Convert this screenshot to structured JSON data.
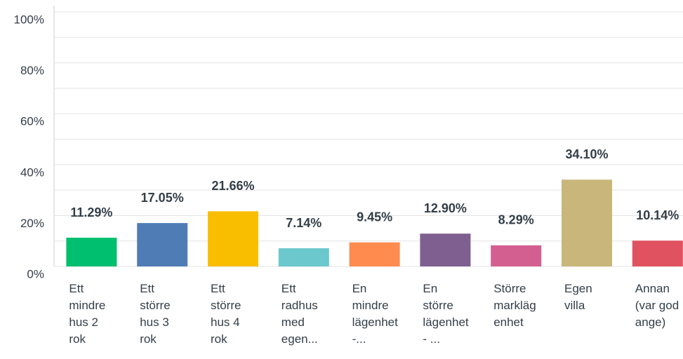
{
  "chart_data": {
    "type": "bar",
    "categories": [
      "Ett mindre hus 2 rok",
      "Ett större hus 3 rok",
      "Ett större hus 4 rok",
      "Ett radhus med egen...",
      "En mindre lägenhet -...",
      "En större lägenhet - ...",
      "Större marklägenhet",
      "Egen villa",
      "Annan (var god ange)"
    ],
    "values": [
      11.29,
      17.05,
      21.66,
      7.14,
      9.45,
      12.9,
      8.29,
      34.1,
      10.14
    ],
    "value_labels": [
      "11.29%",
      "17.05%",
      "21.66%",
      "7.14%",
      "9.45%",
      "12.90%",
      "8.29%",
      "34.10%",
      "10.14%"
    ],
    "colors": [
      "#00bf6f",
      "#507cb6",
      "#f9be00",
      "#6bc8cd",
      "#ff8b4f",
      "#7f5f90",
      "#d25f90",
      "#c8b67a",
      "#e05260"
    ],
    "ylim": [
      0,
      100
    ],
    "yticks": [
      {
        "value": 0,
        "label": "0%"
      },
      {
        "value": 20,
        "label": "20%"
      },
      {
        "value": 40,
        "label": "40%"
      },
      {
        "value": 60,
        "label": "60%"
      },
      {
        "value": 80,
        "label": "80%"
      },
      {
        "value": 100,
        "label": "100%"
      }
    ],
    "yminorticks": [
      10,
      30,
      50,
      70,
      90
    ],
    "grid": true
  }
}
